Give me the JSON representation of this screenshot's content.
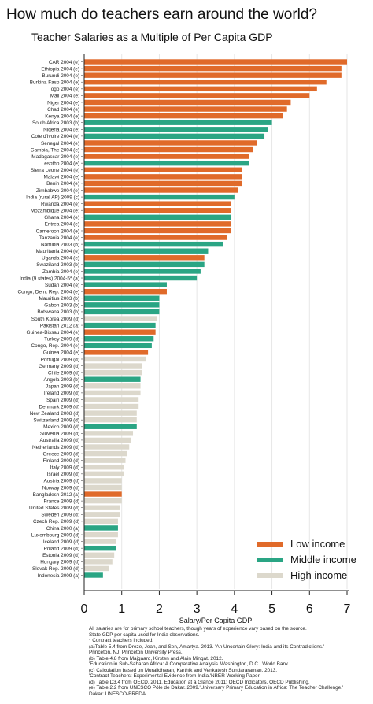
{
  "title": "How much do teachers earn around the world?",
  "subtitle": "Teacher Salaries as a Multiple of Per Capita GDP",
  "colors": {
    "low": "#e06a2a",
    "middle": "#2aa584",
    "high": "#dcd8cc",
    "grid": "#e6e6e6"
  },
  "notes": [
    "All salaries are for primary school teachers, though years of experience vary based on the source.",
    "State GDP per capita used for India observations.",
    "* Contract teachers included.",
    "(a)Table 5.4 from Drèze, Jean, and Sen, Amartya. 2013. 'An Uncertain Glory: India and its Contradictions.'",
    "Princeton, NJ: Princeton University Press.",
    "(b) Table 4.8 from Majgaard, Kirsten and Alain Mingat. 2012.",
    "'Education in Sub-Saharan Africa: A Comparative Analysis.'Washington, D.C.: World Bank.",
    "(c) Calculation based on Muralidharan, Karthik and Venkatesh Sundararaman. 2013.",
    "'Contract Teachers: Experimental Evidence from India.'NBER Working Paper.",
    "(d) Table D3.4 from OECD. 2011. Education at a Glance 2011: OECD Indicators, OECD Publishing.",
    "(e) Table 2.2 from UNESCO Pôle de Dakar. 2009.'Universary Primary Education in Africa: The Teacher Challenge.'",
    "Dakar: UNESCO-BREDA."
  ],
  "chart_data": {
    "type": "bar",
    "orientation": "horizontal",
    "title": "How much do teachers earn around the world?",
    "subtitle": "Teacher Salaries as a Multiple of Per Capita GDP",
    "xlabel": "Salary/Per Capita GDP",
    "ylabel": "",
    "xlim": [
      0,
      7
    ],
    "xticks": [
      "0",
      "1",
      "2",
      "3",
      "4",
      "5",
      "6",
      "7"
    ],
    "grid": "vertical",
    "legend_position": "bottom-right",
    "legend": [
      {
        "name": "Low income",
        "group": "low"
      },
      {
        "name": "Middle income",
        "group": "middle"
      },
      {
        "name": "High income",
        "group": "high"
      }
    ],
    "bars": [
      {
        "label": "CAR 2004 (e)",
        "value": 7.0,
        "group": "low"
      },
      {
        "label": "Ethiopia 2004 (e)",
        "value": 6.85,
        "group": "low"
      },
      {
        "label": "Burundi 2004 (e)",
        "value": 6.85,
        "group": "low"
      },
      {
        "label": "Burkina Faso 2004 (e)",
        "value": 6.45,
        "group": "low"
      },
      {
        "label": "Togo 2004 (e)",
        "value": 6.2,
        "group": "low"
      },
      {
        "label": "Mali 2004 (e)",
        "value": 6.0,
        "group": "low"
      },
      {
        "label": "Niger 2004 (e)",
        "value": 5.5,
        "group": "low"
      },
      {
        "label": "Chad 2004 (e)",
        "value": 5.4,
        "group": "low"
      },
      {
        "label": "Kenya 2004 (e)",
        "value": 5.3,
        "group": "low"
      },
      {
        "label": "South Africa 2003 (b)",
        "value": 5.0,
        "group": "middle"
      },
      {
        "label": "Nigeria 2004 (e)",
        "value": 4.9,
        "group": "middle"
      },
      {
        "label": "Cote d'Ivoire 2004 (e)",
        "value": 4.8,
        "group": "middle"
      },
      {
        "label": "Senegal 2004 (e)",
        "value": 4.6,
        "group": "low"
      },
      {
        "label": "Gambia, The 2004 (e)",
        "value": 4.5,
        "group": "low"
      },
      {
        "label": "Madagascar 2004 (e)",
        "value": 4.4,
        "group": "low"
      },
      {
        "label": "Lesotho 2004 (e)",
        "value": 4.4,
        "group": "middle"
      },
      {
        "label": "Sierra Leone 2004 (e)",
        "value": 4.2,
        "group": "low"
      },
      {
        "label": "Malawi 2004 (e)",
        "value": 4.2,
        "group": "low"
      },
      {
        "label": "Benin 2004 (e)",
        "value": 4.2,
        "group": "low"
      },
      {
        "label": "Zimbabwe 2004 (e)",
        "value": 4.1,
        "group": "low"
      },
      {
        "label": "India (rural AP) 2009 (c)",
        "value": 4.0,
        "group": "middle"
      },
      {
        "label": "Rwanda 2004 (e)",
        "value": 3.9,
        "group": "low"
      },
      {
        "label": "Mozambique 2004 (e)",
        "value": 3.9,
        "group": "low"
      },
      {
        "label": "Ghana 2004 (e)",
        "value": 3.9,
        "group": "middle"
      },
      {
        "label": "Eritrea 2004 (e)",
        "value": 3.9,
        "group": "low"
      },
      {
        "label": "Cameroon 2004 (e)",
        "value": 3.9,
        "group": "low"
      },
      {
        "label": "Tanzania 2004 (e)",
        "value": 3.8,
        "group": "low"
      },
      {
        "label": "Namibia 2003 (b)",
        "value": 3.7,
        "group": "middle"
      },
      {
        "label": "Mauritania 2004 (e)",
        "value": 3.3,
        "group": "middle"
      },
      {
        "label": "Uganda 2004 (e)",
        "value": 3.2,
        "group": "low"
      },
      {
        "label": "Swaziland 2003 (b)",
        "value": 3.2,
        "group": "middle"
      },
      {
        "label": "Zambia 2004 (e)",
        "value": 3.1,
        "group": "middle"
      },
      {
        "label": "India (9 states) 2004-5* (a)",
        "value": 3.0,
        "group": "middle"
      },
      {
        "label": "Sudan 2004 (e)",
        "value": 2.2,
        "group": "middle"
      },
      {
        "label": "Congo, Dem. Rep. 2004 (e)",
        "value": 2.2,
        "group": "low"
      },
      {
        "label": "Mauritius 2003 (b)",
        "value": 2.0,
        "group": "middle"
      },
      {
        "label": "Gabon 2003 (b)",
        "value": 2.0,
        "group": "middle"
      },
      {
        "label": "Botswana 2003 (b)",
        "value": 2.0,
        "group": "middle"
      },
      {
        "label": "South Korea 2009 (d)",
        "value": 1.95,
        "group": "high"
      },
      {
        "label": "Pakistan 2012 (a)",
        "value": 1.9,
        "group": "middle"
      },
      {
        "label": "Guinea-Bissau 2004 (e)",
        "value": 1.9,
        "group": "low"
      },
      {
        "label": "Turkey 2009 (d)",
        "value": 1.85,
        "group": "middle"
      },
      {
        "label": "Congo, Rep. 2004 (e)",
        "value": 1.8,
        "group": "middle"
      },
      {
        "label": "Guinea 2004 (e)",
        "value": 1.7,
        "group": "low"
      },
      {
        "label": "Portugal 2009 (d)",
        "value": 1.65,
        "group": "high"
      },
      {
        "label": "Germany 2009 (d)",
        "value": 1.55,
        "group": "high"
      },
      {
        "label": "Chile 2009 (d)",
        "value": 1.55,
        "group": "high"
      },
      {
        "label": "Angola 2003 (b)",
        "value": 1.5,
        "group": "middle"
      },
      {
        "label": "Japan 2009 (d)",
        "value": 1.5,
        "group": "high"
      },
      {
        "label": "Ireland 2009 (d)",
        "value": 1.5,
        "group": "high"
      },
      {
        "label": "Spain 2009 (d)",
        "value": 1.45,
        "group": "high"
      },
      {
        "label": "Denmark 2009 (d)",
        "value": 1.45,
        "group": "high"
      },
      {
        "label": "New Zealand 2008 (d)",
        "value": 1.4,
        "group": "high"
      },
      {
        "label": "Switzerland 2009 (d)",
        "value": 1.4,
        "group": "high"
      },
      {
        "label": "Mexico 2009 (d)",
        "value": 1.4,
        "group": "middle"
      },
      {
        "label": "Slovenia 2009 (d)",
        "value": 1.3,
        "group": "high"
      },
      {
        "label": "Australia 2009 (d)",
        "value": 1.25,
        "group": "high"
      },
      {
        "label": "Netherlands 2009 (d)",
        "value": 1.2,
        "group": "high"
      },
      {
        "label": "Greece 2009 (d)",
        "value": 1.15,
        "group": "high"
      },
      {
        "label": "Finland 2009 (d)",
        "value": 1.1,
        "group": "high"
      },
      {
        "label": "Italy 2009 (d)",
        "value": 1.05,
        "group": "high"
      },
      {
        "label": "Israel 2009 (d)",
        "value": 1.05,
        "group": "high"
      },
      {
        "label": "Austria 2009 (d)",
        "value": 1.0,
        "group": "high"
      },
      {
        "label": "Norway 2009 (d)",
        "value": 1.0,
        "group": "high"
      },
      {
        "label": "Bangladesh 2012 (a)",
        "value": 1.0,
        "group": "low"
      },
      {
        "label": "France 2009 (d)",
        "value": 1.0,
        "group": "high"
      },
      {
        "label": "United States 2009 (d)",
        "value": 0.95,
        "group": "high"
      },
      {
        "label": "Sweden 2009 (d)",
        "value": 0.95,
        "group": "high"
      },
      {
        "label": "Czech Rep. 2009 (d)",
        "value": 0.9,
        "group": "high"
      },
      {
        "label": "China 2000 (a)",
        "value": 0.9,
        "group": "middle"
      },
      {
        "label": "Luxembourg 2009 (d)",
        "value": 0.9,
        "group": "high"
      },
      {
        "label": "Iceland 2009 (d)",
        "value": 0.85,
        "group": "high"
      },
      {
        "label": "Poland 2009 (d)",
        "value": 0.85,
        "group": "middle"
      },
      {
        "label": "Estonia 2009 (d)",
        "value": 0.8,
        "group": "high"
      },
      {
        "label": "Hungary 2009 (d)",
        "value": 0.75,
        "group": "high"
      },
      {
        "label": "Slovak Rep. 2009 (d)",
        "value": 0.65,
        "group": "high"
      },
      {
        "label": "Indonesia 2009 (a)",
        "value": 0.5,
        "group": "middle"
      }
    ]
  }
}
